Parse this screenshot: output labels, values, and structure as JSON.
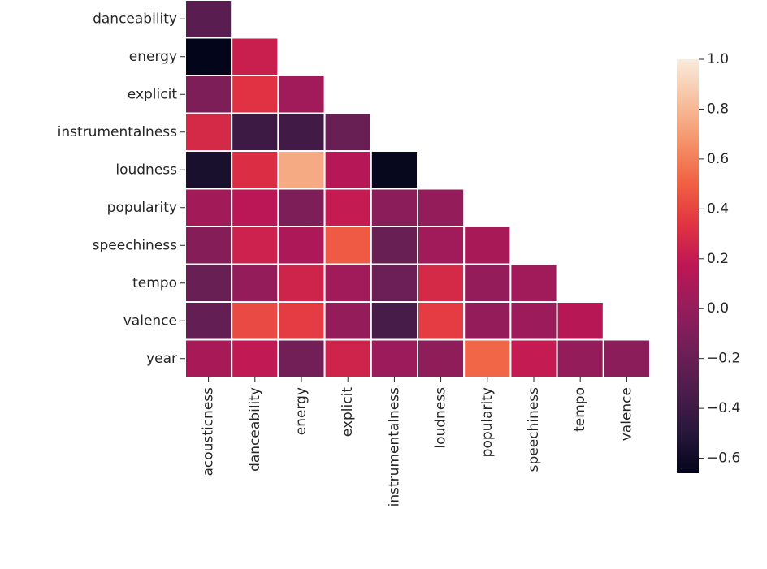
{
  "chart_data": {
    "type": "heatmap",
    "x_categories": [
      "acousticness",
      "danceability",
      "energy",
      "explicit",
      "instrumentalness",
      "loudness",
      "popularity",
      "speechiness",
      "tempo",
      "valence"
    ],
    "y_categories": [
      "danceability",
      "energy",
      "explicit",
      "instrumentalness",
      "loudness",
      "popularity",
      "speechiness",
      "tempo",
      "valence",
      "year"
    ],
    "values": [
      [
        -0.27,
        null,
        null,
        null,
        null,
        null,
        null,
        null,
        null,
        null
      ],
      [
        -0.66,
        0.22,
        null,
        null,
        null,
        null,
        null,
        null,
        null,
        null
      ],
      [
        -0.1,
        0.33,
        0.05,
        null,
        null,
        null,
        null,
        null,
        null,
        null
      ],
      [
        0.28,
        -0.4,
        -0.38,
        -0.2,
        null,
        null,
        null,
        null,
        null,
        null
      ],
      [
        -0.56,
        0.31,
        0.75,
        0.14,
        -0.64,
        null,
        null,
        null,
        null,
        null
      ],
      [
        0.06,
        0.16,
        -0.1,
        0.2,
        -0.05,
        0.0,
        null,
        null,
        null,
        null
      ],
      [
        -0.07,
        0.24,
        0.1,
        0.48,
        -0.2,
        0.05,
        0.08,
        null,
        null,
        null
      ],
      [
        -0.2,
        0.0,
        0.25,
        0.05,
        -0.18,
        0.28,
        0.0,
        0.05,
        null,
        null
      ],
      [
        -0.22,
        0.42,
        0.37,
        0.0,
        -0.35,
        0.37,
        0.0,
        0.03,
        0.15,
        null
      ],
      [
        0.08,
        0.19,
        -0.15,
        0.25,
        0.03,
        -0.03,
        0.52,
        0.2,
        0.0,
        -0.05
      ]
    ],
    "zlim": [
      -0.66,
      1.0
    ],
    "zticks": [
      {
        "value": -0.6,
        "label": "−0.6"
      },
      {
        "value": -0.4,
        "label": "−0.4"
      },
      {
        "value": -0.2,
        "label": "−0.2"
      },
      {
        "value": 0.0,
        "label": "0.0"
      },
      0.2,
      0.4,
      0.6,
      0.8,
      {
        "value": 1.0,
        "label": "1.0"
      }
    ],
    "colormap": [
      "#03051a",
      "#28173b",
      "#4c1d4b",
      "#701f57",
      "#961c5b",
      "#bd1655",
      "#e13342",
      "#f06043",
      "#f5936a",
      "#f6c19f",
      "#faebdd"
    ]
  }
}
